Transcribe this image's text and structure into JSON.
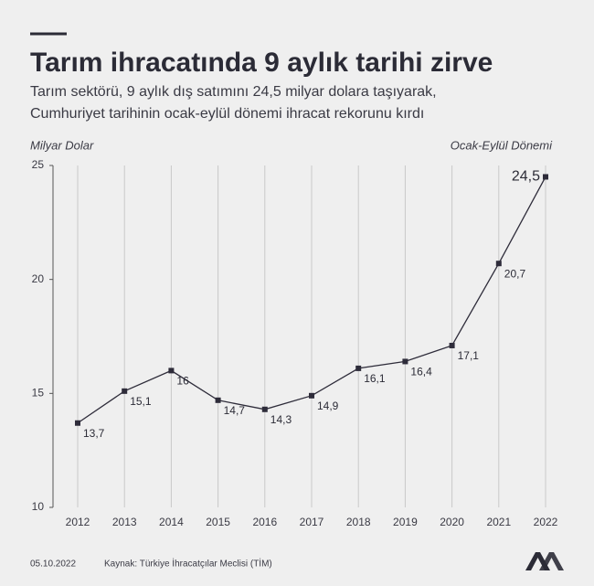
{
  "chart_data": {
    "type": "line",
    "title": "Tarım ihracatında 9 aylık tarihi zirve",
    "subtitle": [
      "Tarım sektörü, 9 aylık dış satımını 24,5 milyar dolara taşıyarak,",
      "Cumhuriyet tarihinin ocak-eylül dönemi ihracat rekorunu kırdı"
    ],
    "y_label": "Milyar Dolar",
    "period_label": "Ocak-Eylül Dönemi",
    "categories": [
      "2012",
      "2013",
      "2014",
      "2015",
      "2016",
      "2017",
      "2018",
      "2019",
      "2020",
      "2021",
      "2022"
    ],
    "values": [
      13.7,
      15.1,
      16,
      14.7,
      14.3,
      14.9,
      16.1,
      16.4,
      17.1,
      20.7,
      24.5
    ],
    "value_labels": [
      "13,7",
      "15,1",
      "16",
      "14,7",
      "14,3",
      "14,9",
      "16,1",
      "16,4",
      "17,1",
      "20,7",
      "24,5"
    ],
    "color": "#2e2c3a",
    "ylim": [
      10,
      25
    ],
    "yticks": [
      10,
      15,
      20,
      25
    ],
    "grid": true,
    "date": "05.10.2022",
    "source": "Kaynak: Türkiye İhracatçılar Meclisi (TİM)"
  }
}
